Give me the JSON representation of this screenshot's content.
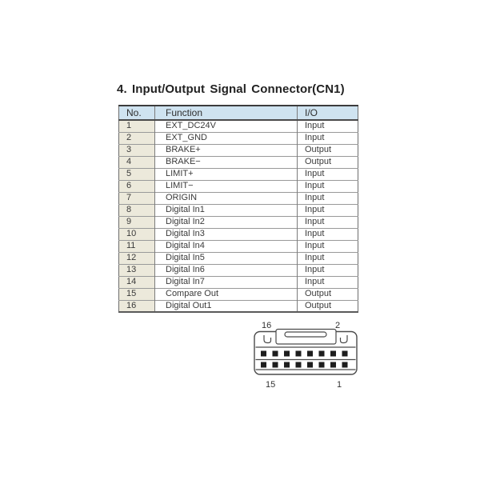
{
  "page": {
    "title": "4. Input/Output Signal Connector(CN1)"
  },
  "table": {
    "headers": {
      "no": "No.",
      "function": "Function",
      "io": "I/O"
    },
    "rows": [
      {
        "no": "1",
        "function": "EXT_DC24V",
        "io": "Input"
      },
      {
        "no": "2",
        "function": "EXT_GND",
        "io": "Input"
      },
      {
        "no": "3",
        "function": "BRAKE+",
        "io": "Output"
      },
      {
        "no": "4",
        "function": "BRAKE−",
        "io": "Output"
      },
      {
        "no": "5",
        "function": "LIMIT+",
        "io": "Input"
      },
      {
        "no": "6",
        "function": "LIMIT−",
        "io": "Input"
      },
      {
        "no": "7",
        "function": "ORIGIN",
        "io": "Input"
      },
      {
        "no": "8",
        "function": "Digital In1",
        "io": "Input"
      },
      {
        "no": "9",
        "function": "Digital In2",
        "io": "Input"
      },
      {
        "no": "10",
        "function": "Digital In3",
        "io": "Input"
      },
      {
        "no": "11",
        "function": "Digital In4",
        "io": "Input"
      },
      {
        "no": "12",
        "function": "Digital In5",
        "io": "Input"
      },
      {
        "no": "13",
        "function": "Digital In6",
        "io": "Input"
      },
      {
        "no": "14",
        "function": "Digital In7",
        "io": "Input"
      },
      {
        "no": "15",
        "function": "Compare Out",
        "io": "Output"
      },
      {
        "no": "16",
        "function": "Digital Out1",
        "io": "Output"
      }
    ]
  },
  "connector": {
    "labels": {
      "top_left": "16",
      "top_right": "2",
      "bottom_left": "15",
      "bottom_right": "1"
    },
    "pin_rows": 2,
    "pins_per_row": 8
  },
  "colors": {
    "header_bg": "#cfe3f0",
    "no_column_bg": "#ece9db",
    "table_border_dark": "#3c3c3c",
    "table_line": "#9a9a9a",
    "text": "#3a3a3a",
    "pin_fill": "#1d1d1d"
  }
}
